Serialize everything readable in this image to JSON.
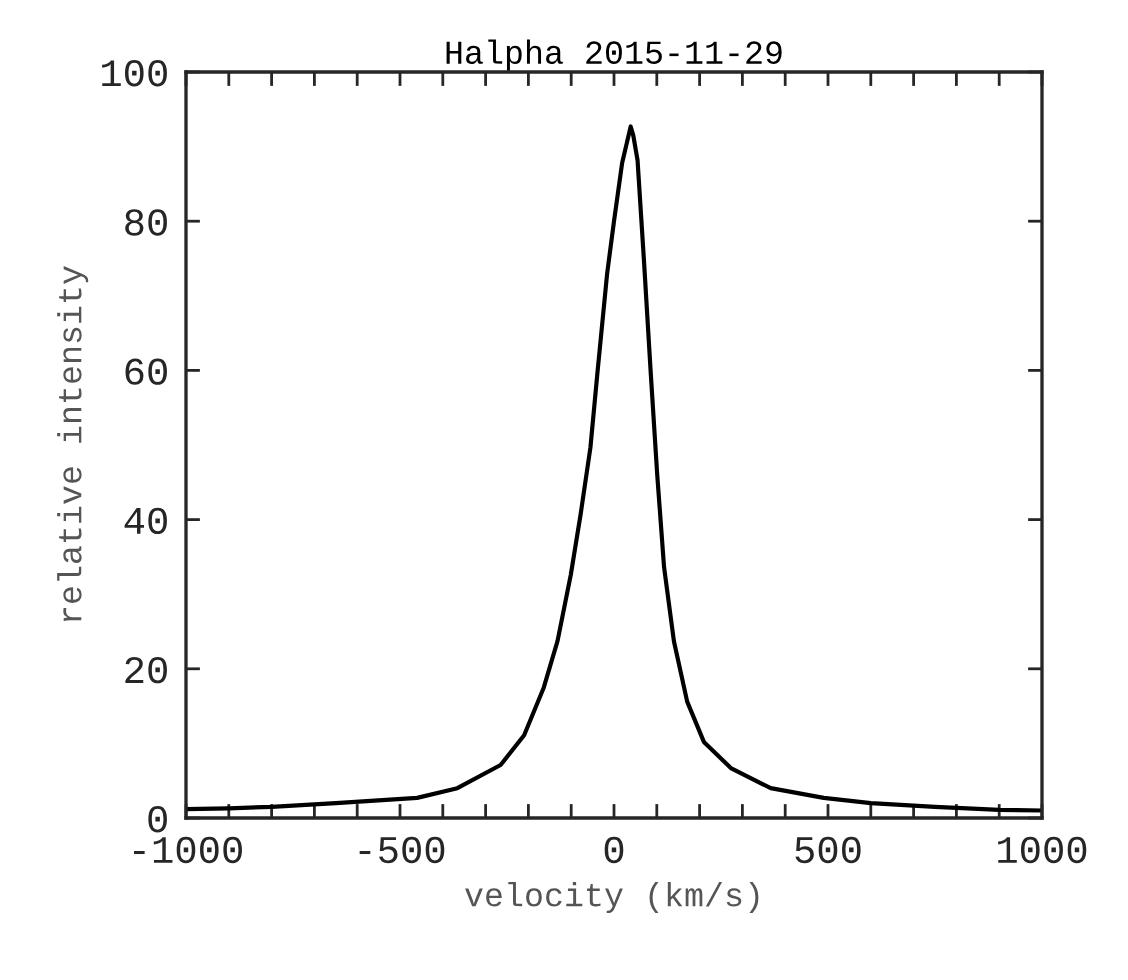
{
  "chart_data": {
    "type": "line",
    "title": "Halpha 2015-11-29",
    "xlabel": "velocity (km/s)",
    "ylabel": "relative intensity",
    "x": [
      -1000,
      -900,
      -800,
      -650,
      -460,
      -366,
      -265,
      -210,
      -164,
      -132,
      -101,
      -78,
      -55,
      -39,
      -16,
      0,
      19,
      30,
      39,
      45,
      55,
      70,
      86,
      101,
      117,
      140,
      171,
      210,
      273,
      366,
      490,
      600,
      750,
      900,
      1000
    ],
    "series": [
      {
        "color": "#000000",
        "values": [
          1.2,
          1.3,
          1.5,
          2.0,
          2.7,
          4.0,
          7.1,
          11.1,
          17.5,
          23.7,
          32.6,
          40.7,
          49.7,
          59.5,
          73.0,
          80.0,
          87.8,
          90.5,
          92.7,
          91.5,
          88.2,
          74.7,
          59.5,
          46.0,
          33.6,
          23.7,
          15.6,
          10.2,
          6.7,
          4.0,
          2.7,
          2.0,
          1.5,
          1.1,
          1.0
        ]
      }
    ],
    "xlim": [
      -1000,
      1000
    ],
    "ylim": [
      0,
      100
    ],
    "xticks": [
      -1000,
      {
        "value": -900,
        "label": null
      },
      {
        "value": -800,
        "label": null
      },
      {
        "value": -700,
        "label": null
      },
      {
        "value": -600,
        "label": null
      },
      -500,
      {
        "value": -400,
        "label": null
      },
      {
        "value": -300,
        "label": null
      },
      {
        "value": -200,
        "label": null
      },
      {
        "value": -100,
        "label": null
      },
      0,
      {
        "value": 100,
        "label": null
      },
      {
        "value": 200,
        "label": null
      },
      {
        "value": 300,
        "label": null
      },
      {
        "value": 400,
        "label": null
      },
      500,
      {
        "value": 600,
        "label": null
      },
      {
        "value": 700,
        "label": null
      },
      {
        "value": 800,
        "label": null
      },
      {
        "value": 900,
        "label": null
      },
      1000
    ],
    "yticks": [
      0,
      20,
      40,
      60,
      80,
      100
    ],
    "grid": false,
    "legend": false,
    "marker": "none",
    "line_style": "solid"
  }
}
